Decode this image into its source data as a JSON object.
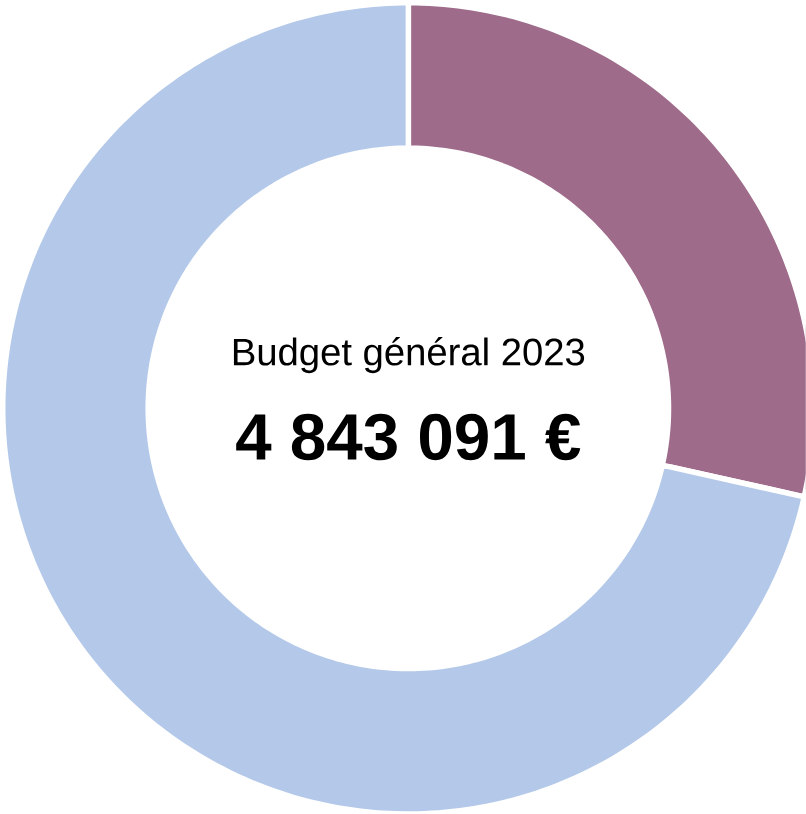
{
  "chart_data": {
    "type": "donut",
    "title": "Budget général 2023",
    "annotations": [
      "4 843 091 €"
    ],
    "categories": [
      null,
      null
    ],
    "values": [
      28.5,
      71.5
    ],
    "colors": [
      "#9e6b8a",
      "#b4c9e9"
    ]
  }
}
